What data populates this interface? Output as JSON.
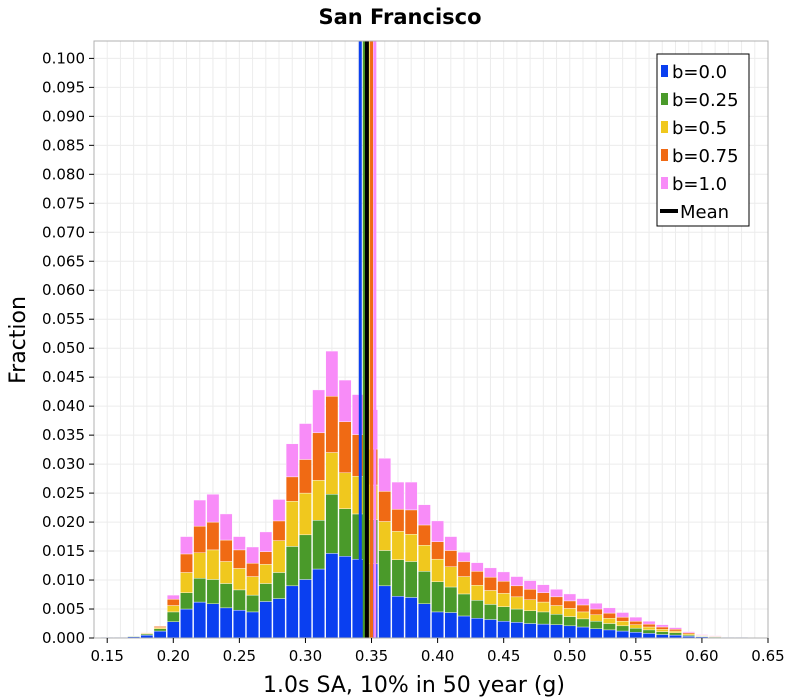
{
  "chart_data": {
    "type": "bar",
    "stacked": true,
    "title": "San Francisco",
    "xlabel": "1.0s SA, 10% in 50 year (g)",
    "ylabel": "Fraction",
    "xlim": [
      0.14,
      0.65
    ],
    "ylim": [
      0.0,
      0.103
    ],
    "grid": true,
    "legend_position": "top-right",
    "bin_width": 0.01,
    "x_ticks": [
      "0.15",
      "0.20",
      "0.25",
      "0.30",
      "0.35",
      "0.40",
      "0.45",
      "0.50",
      "0.55",
      "0.60",
      "0.65"
    ],
    "y_ticks": [
      "0.000",
      "0.005",
      "0.010",
      "0.015",
      "0.020",
      "0.025",
      "0.030",
      "0.035",
      "0.040",
      "0.045",
      "0.050",
      "0.055",
      "0.060",
      "0.065",
      "0.070",
      "0.075",
      "0.080",
      "0.085",
      "0.090",
      "0.095",
      "0.100"
    ],
    "x": [
      0.15,
      0.16,
      0.17,
      0.18,
      0.19,
      0.2,
      0.21,
      0.22,
      0.23,
      0.24,
      0.25,
      0.26,
      0.27,
      0.28,
      0.29,
      0.3,
      0.31,
      0.32,
      0.33,
      0.34,
      0.35,
      0.36,
      0.37,
      0.38,
      0.39,
      0.4,
      0.41,
      0.42,
      0.43,
      0.44,
      0.45,
      0.46,
      0.47,
      0.48,
      0.49,
      0.5,
      0.51,
      0.52,
      0.53,
      0.54,
      0.55,
      0.56,
      0.57,
      0.58,
      0.59,
      0.6,
      0.61,
      0.62,
      0.63,
      0.64
    ],
    "series": [
      {
        "name": "b=0.0",
        "color": "#0a3ff0",
        "values": [
          0.0001,
          0.0001,
          0.0002,
          0.0005,
          0.0012,
          0.0028,
          0.005,
          0.0062,
          0.0059,
          0.0052,
          0.0048,
          0.0045,
          0.0063,
          0.0068,
          0.009,
          0.0101,
          0.0119,
          0.0146,
          0.0141,
          0.0136,
          0.0128,
          0.009,
          0.0072,
          0.007,
          0.0059,
          0.0045,
          0.0044,
          0.0038,
          0.0034,
          0.0032,
          0.0029,
          0.0027,
          0.0025,
          0.0024,
          0.0023,
          0.0021,
          0.0019,
          0.0016,
          0.0014,
          0.0012,
          0.001,
          0.0008,
          0.0006,
          0.0005,
          0.0003,
          0.0002,
          0.0001,
          0.0001,
          0.0001,
          0.0
        ]
      },
      {
        "name": "b=0.25",
        "color": "#4a9a2a",
        "values": [
          0.0,
          0.0,
          0.0001,
          0.0002,
          0.0004,
          0.0017,
          0.0028,
          0.0041,
          0.0042,
          0.0042,
          0.0035,
          0.0029,
          0.0031,
          0.0045,
          0.0068,
          0.0077,
          0.0084,
          0.0102,
          0.0082,
          0.0078,
          0.0076,
          0.0061,
          0.0063,
          0.0062,
          0.0056,
          0.0052,
          0.0044,
          0.0038,
          0.0031,
          0.0026,
          0.0025,
          0.0023,
          0.0022,
          0.0021,
          0.0018,
          0.0016,
          0.0014,
          0.0013,
          0.0011,
          0.0009,
          0.0007,
          0.0006,
          0.0005,
          0.0004,
          0.0002,
          0.0001,
          0.0001,
          0.0,
          0.0,
          0.0
        ]
      },
      {
        "name": "b=0.5",
        "color": "#f0c81e",
        "values": [
          0.0,
          0.0,
          0.0,
          0.0001,
          0.0002,
          0.0011,
          0.0035,
          0.0044,
          0.0051,
          0.0038,
          0.0037,
          0.0032,
          0.0033,
          0.0055,
          0.0078,
          0.0072,
          0.0069,
          0.0072,
          0.0062,
          0.0065,
          0.006,
          0.005,
          0.0049,
          0.0047,
          0.0045,
          0.0039,
          0.0035,
          0.003,
          0.0026,
          0.0024,
          0.0023,
          0.0021,
          0.0019,
          0.0017,
          0.0015,
          0.0014,
          0.0012,
          0.0011,
          0.0009,
          0.0008,
          0.0006,
          0.0005,
          0.0004,
          0.0003,
          0.0002,
          0.0001,
          0.0,
          0.0,
          0.0,
          0.0
        ]
      },
      {
        "name": "b=0.75",
        "color": "#f06a14",
        "values": [
          0.0,
          0.0,
          0.0,
          0.0001,
          0.0002,
          0.0011,
          0.0032,
          0.0046,
          0.0048,
          0.0037,
          0.0032,
          0.0023,
          0.0022,
          0.0034,
          0.0042,
          0.0058,
          0.0082,
          0.0097,
          0.0088,
          0.0072,
          0.0062,
          0.0052,
          0.0038,
          0.0042,
          0.0035,
          0.003,
          0.0028,
          0.0026,
          0.0024,
          0.0023,
          0.0021,
          0.0019,
          0.0018,
          0.0016,
          0.0015,
          0.0013,
          0.0012,
          0.001,
          0.0009,
          0.0007,
          0.0006,
          0.0005,
          0.0004,
          0.0003,
          0.0002,
          0.0001,
          0.0001,
          0.0,
          0.0,
          0.0
        ]
      },
      {
        "name": "b=1.0",
        "color": "#f88cf8",
        "values": [
          0.0,
          0.0,
          0.0,
          0.0,
          0.0,
          0.0007,
          0.003,
          0.0045,
          0.0048,
          0.0045,
          0.0023,
          0.0028,
          0.0034,
          0.0037,
          0.0057,
          0.0062,
          0.0074,
          0.0078,
          0.0072,
          0.0069,
          0.0068,
          0.0057,
          0.0047,
          0.0048,
          0.0035,
          0.0036,
          0.0024,
          0.0016,
          0.0015,
          0.0016,
          0.0016,
          0.0016,
          0.0015,
          0.0014,
          0.0013,
          0.0012,
          0.0011,
          0.001,
          0.0009,
          0.0008,
          0.0007,
          0.0005,
          0.0004,
          0.0003,
          0.0002,
          0.0001,
          0.0001,
          0.0,
          0.0,
          0.0
        ]
      }
    ],
    "mean_lines": [
      {
        "name": "b=0.0",
        "x": 0.3415,
        "color": "#0a3ff0"
      },
      {
        "name": "b=0.25",
        "x": 0.3445,
        "color": "#4a9a2a"
      },
      {
        "name": "b=0.5",
        "x": 0.3475,
        "color": "#f0c81e"
      },
      {
        "name": "b=0.75",
        "x": 0.35,
        "color": "#f06a14"
      },
      {
        "name": "b=1.0",
        "x": 0.3525,
        "color": "#f88cf8"
      },
      {
        "name": "Mean",
        "x": 0.3465,
        "color": "#000000"
      }
    ],
    "legend": [
      {
        "label": "b=0.0",
        "color": "#0a3ff0",
        "kind": "patch"
      },
      {
        "label": "b=0.25",
        "color": "#4a9a2a",
        "kind": "patch"
      },
      {
        "label": "b=0.5",
        "color": "#f0c81e",
        "kind": "patch"
      },
      {
        "label": "b=0.75",
        "color": "#f06a14",
        "kind": "patch"
      },
      {
        "label": "b=1.0",
        "color": "#f88cf8",
        "kind": "patch"
      },
      {
        "label": "Mean",
        "color": "#000000",
        "kind": "line"
      }
    ]
  }
}
